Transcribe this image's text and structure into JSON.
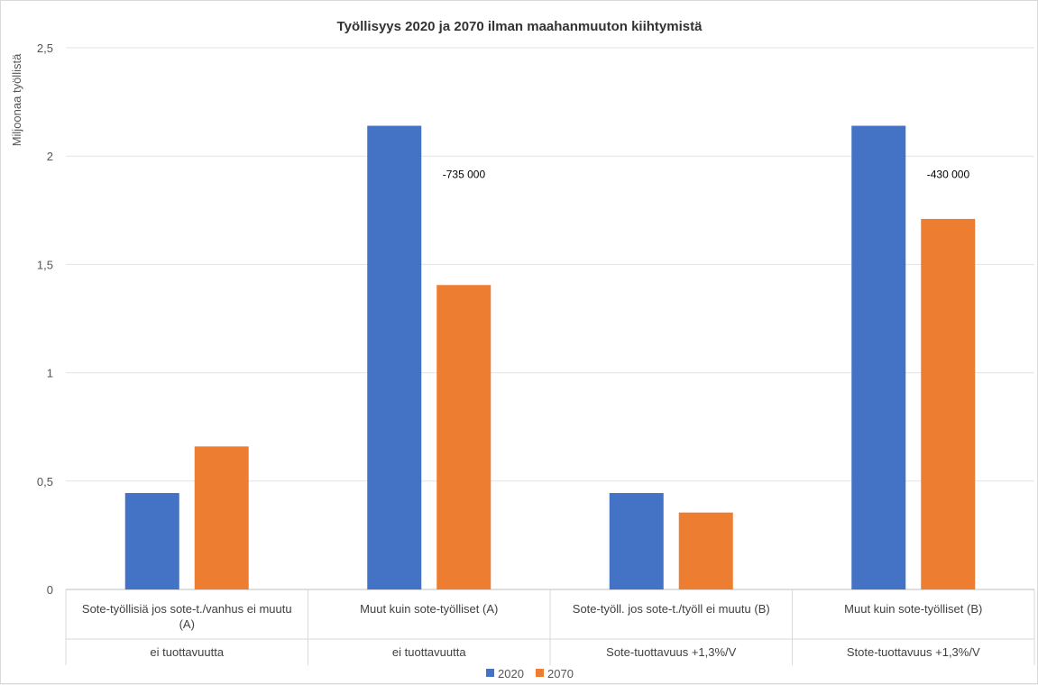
{
  "chart_data": {
    "type": "bar",
    "title": "Työllisyys 2020 ja 2070 ilman maahanmuuton kiihtymistä",
    "xlabel": "",
    "ylabel": "Miljoonaa työllistä",
    "ylim": [
      0,
      2.5
    ],
    "yticks": [
      "0",
      "0,5",
      "1",
      "1,5",
      "2",
      "2,5"
    ],
    "ytick_values": [
      0,
      0.5,
      1,
      1.5,
      2,
      2.5
    ],
    "grid": true,
    "legend_position": "bottom",
    "categories": [
      {
        "line1": "Sote-työllisiä jos sote-t./vanhus ei muutu",
        "line2": "(A)",
        "group": "ei tuottavuutta"
      },
      {
        "line1": "Muut kuin sote-työlliset (A)",
        "line2": "",
        "group": "ei tuottavuutta"
      },
      {
        "line1": "Sote-työll. jos sote-t./työll ei muutu (B)",
        "line2": "",
        "group": "Sote-tuottavuus +1,3%/V"
      },
      {
        "line1": "Muut kuin sote-työlliset (B)",
        "line2": "",
        "group": "Stote-tuottavuus +1,3%/V"
      }
    ],
    "series": [
      {
        "name": "2020",
        "color": "#4472c4",
        "values": [
          0.445,
          2.14,
          0.445,
          2.14
        ]
      },
      {
        "name": "2070",
        "color": "#ed7d31",
        "values": [
          0.66,
          1.405,
          0.355,
          1.71
        ]
      }
    ],
    "annotations": [
      {
        "category_index": 1,
        "text": "-735 000",
        "y": 1.92
      },
      {
        "category_index": 3,
        "text": "-430 000",
        "y": 1.92
      }
    ]
  }
}
